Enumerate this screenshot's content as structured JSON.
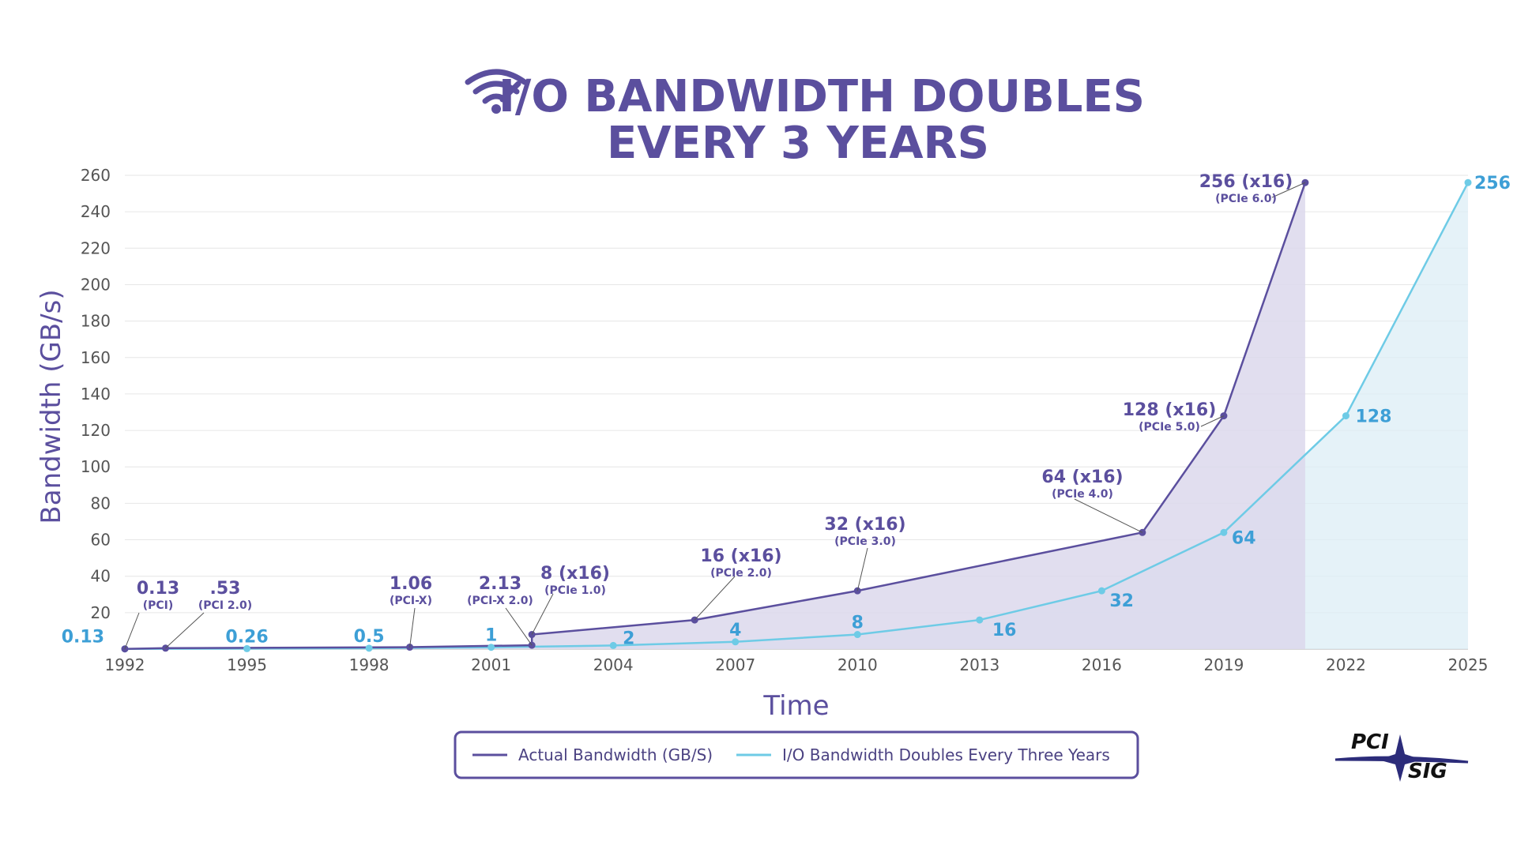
{
  "chart_data": {
    "type": "area",
    "title_lines": [
      "I/O BANDWIDTH DOUBLES",
      "EVERY 3 YEARS"
    ],
    "xlabel": "Time",
    "ylabel": "Bandwidth (GB/s)",
    "xlim": [
      1992,
      2025
    ],
    "ylim": [
      0,
      260
    ],
    "x_ticks": [
      1992,
      1995,
      1998,
      2001,
      2004,
      2007,
      2010,
      2013,
      2016,
      2019,
      2022,
      2025
    ],
    "y_ticks": [
      20,
      40,
      60,
      80,
      100,
      120,
      140,
      160,
      180,
      200,
      220,
      240,
      260
    ],
    "grid": "horizontal",
    "legend_position": "bottom-center",
    "series": [
      {
        "name": "Actual Bandwidth (GB/S)",
        "color": "#5b4f9e",
        "fill": "#dcd8ec",
        "points": [
          {
            "x": 1992,
            "y": 0.13
          },
          {
            "x": 1993,
            "y": 0.53
          },
          {
            "x": 1999,
            "y": 1.06
          },
          {
            "x": 2002,
            "y": 2.13
          },
          {
            "x": 2002,
            "y": 8
          },
          {
            "x": 2006,
            "y": 16
          },
          {
            "x": 2010,
            "y": 32
          },
          {
            "x": 2017,
            "y": 64
          },
          {
            "x": 2019,
            "y": 128
          },
          {
            "x": 2021,
            "y": 256
          }
        ],
        "labels": [
          {
            "text": "0.13",
            "sub": "(PCI)"
          },
          {
            "text": ".53",
            "sub": "(PCI 2.0)"
          },
          {
            "text": "1.06",
            "sub": "(PCI-X)"
          },
          {
            "text": "2.13",
            "sub": "(PCI-X 2.0)"
          },
          {
            "text": "8 (x16)",
            "sub": "(PCIe 1.0)"
          },
          {
            "text": "16 (x16)",
            "sub": "(PCIe 2.0)"
          },
          {
            "text": "32 (x16)",
            "sub": "(PCIe 3.0)"
          },
          {
            "text": "64 (x16)",
            "sub": "(PCIe 4.0)"
          },
          {
            "text": "128 (x16)",
            "sub": "(PCIe 5.0)"
          },
          {
            "text": "256 (x16)",
            "sub": "(PCIe 6.0)"
          }
        ]
      },
      {
        "name": "I/O Bandwidth Doubles Every Three Years",
        "color": "#6ecbe6",
        "label_color": "#3d9fd6",
        "fill": "#dcedf6",
        "points": [
          {
            "x": 1992,
            "y": 0.13
          },
          {
            "x": 1995,
            "y": 0.26
          },
          {
            "x": 1998,
            "y": 0.5
          },
          {
            "x": 2001,
            "y": 1
          },
          {
            "x": 2004,
            "y": 2
          },
          {
            "x": 2007,
            "y": 4
          },
          {
            "x": 2010,
            "y": 8
          },
          {
            "x": 2013,
            "y": 16
          },
          {
            "x": 2016,
            "y": 32
          },
          {
            "x": 2019,
            "y": 64
          },
          {
            "x": 2022,
            "y": 128
          },
          {
            "x": 2025,
            "y": 256
          }
        ],
        "labels": [
          "0.13",
          "0.26",
          "0.5",
          "1",
          "2",
          "4",
          "8",
          "16",
          "32",
          "64",
          "128",
          "256"
        ]
      }
    ]
  },
  "logo": {
    "text_top": "PCI",
    "text_bottom": "SIG"
  },
  "colors": {
    "title": "#5b4f9e",
    "grid": "#e6e6e6",
    "legend_border": "#5b4f9e"
  },
  "icons": {
    "title_icon": "wifi-icon"
  }
}
